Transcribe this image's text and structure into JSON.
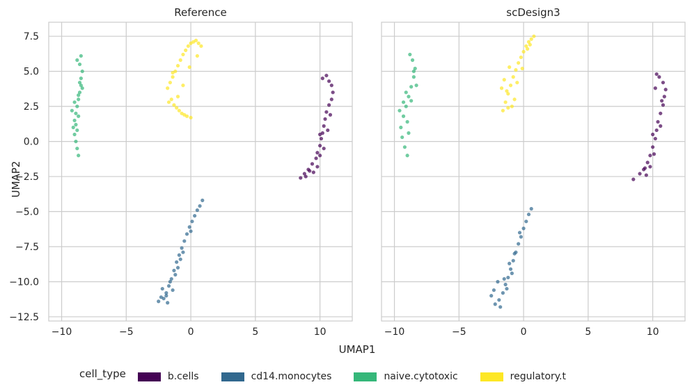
{
  "figure": {
    "xlabel": "UMAP1",
    "ylabel": "UMAP2",
    "legend_title": "cell_type"
  },
  "legend": [
    {
      "label": "b.cells",
      "color": "#440154"
    },
    {
      "label": "cd14.monocytes",
      "color": "#31688e"
    },
    {
      "label": "naive.cytotoxic",
      "color": "#35b779"
    },
    {
      "label": "regulatory.t",
      "color": "#fde725"
    }
  ],
  "chart_data": [
    {
      "type": "scatter",
      "title": "Reference",
      "xlabel": "",
      "ylabel": "UMAP2",
      "xlim": [
        -11.0,
        12.5
      ],
      "ylim": [
        -12.8,
        8.5
      ],
      "xticks": [
        -10,
        -5,
        0,
        5,
        10
      ],
      "yticks": [
        7.5,
        5.0,
        2.5,
        0.0,
        -2.5,
        -5.0,
        -7.5,
        -10.0,
        -12.5
      ],
      "xtick_labels": [
        "−10",
        "−5",
        "0",
        "5",
        "10"
      ],
      "ytick_labels": [
        "7.5",
        "5.0",
        "2.5",
        "0.0",
        "−2.5",
        "−5.0",
        "−7.5",
        "−10.0",
        "−12.5"
      ],
      "grid": true,
      "series": [
        {
          "name": "b.cells",
          "color": "#440154",
          "x": [
            8.5,
            8.8,
            9.1,
            9.4,
            9.7,
            9.8,
            10.0,
            10.1,
            10.2,
            10.3,
            10.4,
            10.5,
            10.7,
            10.9,
            11.0,
            10.9,
            10.7,
            10.5,
            10.2,
            10.0,
            9.8,
            9.5,
            9.2,
            8.9,
            10.3,
            10.6,
            10.8,
            10.0
          ],
          "y": [
            -2.6,
            -2.3,
            -2.0,
            -1.6,
            -1.2,
            -0.8,
            -0.3,
            0.2,
            0.6,
            1.1,
            1.6,
            2.1,
            2.6,
            3.0,
            3.5,
            4.0,
            4.3,
            4.7,
            4.5,
            0.5,
            -1.8,
            -2.2,
            -2.1,
            -2.5,
            -0.5,
            0.8,
            1.9,
            -1.0
          ]
        },
        {
          "name": "cd14.monocytes",
          "color": "#31688e",
          "x": [
            -2.5,
            -2.3,
            -2.1,
            -1.9,
            -1.7,
            -1.5,
            -1.3,
            -1.1,
            -0.9,
            -0.7,
            -0.5,
            -0.3,
            -0.1,
            0.1,
            0.3,
            0.5,
            0.7,
            0.9,
            -1.8,
            -1.4,
            -1.0,
            -0.6,
            -2.2,
            -1.6,
            -1.2,
            -0.8,
            0.0,
            -1.9
          ],
          "y": [
            -11.4,
            -11.1,
            -11.2,
            -10.8,
            -10.3,
            -9.8,
            -9.2,
            -8.6,
            -8.1,
            -7.6,
            -7.1,
            -6.6,
            -6.1,
            -5.7,
            -5.3,
            -4.9,
            -4.6,
            -4.2,
            -11.5,
            -10.6,
            -9.0,
            -7.9,
            -10.5,
            -10.0,
            -9.5,
            -8.4,
            -6.4,
            -11.0
          ]
        },
        {
          "name": "naive.cytotoxic",
          "color": "#35b779",
          "x": [
            -8.7,
            -8.8,
            -8.9,
            -9.0,
            -9.1,
            -9.0,
            -8.9,
            -8.8,
            -8.7,
            -8.6,
            -8.5,
            -8.5,
            -8.4,
            -8.6,
            -8.8,
            -9.2,
            -9.0,
            -8.7,
            -8.6,
            -8.9,
            -8.5,
            -8.7,
            -8.4,
            -8.8
          ],
          "y": [
            -1.0,
            -0.5,
            0.0,
            0.5,
            1.0,
            1.5,
            2.0,
            2.5,
            3.0,
            3.5,
            4.0,
            4.5,
            5.0,
            5.5,
            5.8,
            2.2,
            2.8,
            3.3,
            4.2,
            1.2,
            6.1,
            1.8,
            3.8,
            0.8
          ]
        },
        {
          "name": "regulatory.t",
          "color": "#fde725",
          "x": [
            -1.8,
            -1.6,
            -1.4,
            -1.2,
            -1.0,
            -0.8,
            -0.6,
            -0.4,
            -0.2,
            0.0,
            0.2,
            0.4,
            0.6,
            0.8,
            -1.7,
            -1.5,
            -1.3,
            -1.1,
            -0.9,
            -0.7,
            -0.5,
            -0.3,
            0.0,
            -1.4,
            -0.6,
            -0.1,
            0.5,
            -1.0
          ],
          "y": [
            3.8,
            4.2,
            4.6,
            5.0,
            5.4,
            5.8,
            6.2,
            6.5,
            6.8,
            7.0,
            7.1,
            7.2,
            7.0,
            6.8,
            2.8,
            3.0,
            2.6,
            2.4,
            2.2,
            2.0,
            1.9,
            1.8,
            1.7,
            4.9,
            4.0,
            5.3,
            6.1,
            3.2
          ]
        }
      ]
    },
    {
      "type": "scatter",
      "title": "scDesign3",
      "xlabel": "",
      "ylabel": "",
      "xlim": [
        -11.0,
        12.5
      ],
      "ylim": [
        -12.8,
        8.5
      ],
      "xticks": [
        -10,
        -5,
        0,
        5,
        10
      ],
      "yticks": [
        7.5,
        5.0,
        2.5,
        0.0,
        -2.5,
        -5.0,
        -7.5,
        -10.0,
        -12.5
      ],
      "xtick_labels": [
        "−10",
        "−5",
        "0",
        "5",
        "10"
      ],
      "grid": true,
      "series": [
        {
          "name": "b.cells",
          "color": "#440154",
          "x": [
            8.5,
            9.0,
            9.3,
            9.6,
            9.8,
            10.0,
            10.2,
            10.3,
            10.4,
            10.6,
            10.8,
            10.9,
            11.0,
            10.8,
            10.5,
            10.3,
            9.5,
            9.8,
            10.1,
            10.6,
            10.0,
            9.4,
            10.7,
            10.2
          ],
          "y": [
            -2.7,
            -2.3,
            -2.0,
            -1.5,
            -1.0,
            -0.4,
            0.2,
            0.8,
            1.4,
            2.0,
            2.6,
            3.2,
            3.7,
            4.2,
            4.6,
            4.8,
            -2.4,
            -1.8,
            -0.9,
            1.1,
            0.5,
            -1.9,
            2.9,
            3.8
          ]
        },
        {
          "name": "cd14.monocytes",
          "color": "#31688e",
          "x": [
            -2.5,
            -2.2,
            -1.9,
            -1.6,
            -1.4,
            -1.2,
            -1.0,
            -0.8,
            -0.6,
            -0.4,
            -0.2,
            0.0,
            0.2,
            0.4,
            0.6,
            -1.8,
            -1.3,
            -0.9,
            -2.0,
            -1.5,
            -1.1,
            -0.7,
            -0.3,
            -2.3
          ],
          "y": [
            -11.0,
            -11.6,
            -11.3,
            -10.8,
            -10.2,
            -9.7,
            -9.1,
            -8.5,
            -7.9,
            -7.3,
            -6.8,
            -6.2,
            -5.7,
            -5.2,
            -4.8,
            -11.8,
            -10.5,
            -9.4,
            -10.0,
            -9.8,
            -8.7,
            -8.0,
            -6.5,
            -10.6
          ]
        },
        {
          "name": "naive.cytotoxic",
          "color": "#35b779",
          "x": [
            -9.0,
            -9.2,
            -9.4,
            -9.5,
            -9.3,
            -9.1,
            -8.9,
            -8.7,
            -8.5,
            -8.4,
            -8.6,
            -8.8,
            -9.6,
            -9.0,
            -8.3,
            -8.7,
            -9.1,
            -8.5,
            -8.9,
            -9.3
          ],
          "y": [
            -1.0,
            -0.4,
            0.3,
            1.0,
            1.8,
            2.5,
            3.2,
            3.9,
            4.6,
            5.2,
            5.8,
            6.2,
            2.2,
            1.4,
            4.0,
            2.9,
            3.5,
            5.0,
            0.6,
            2.8
          ]
        },
        {
          "name": "regulatory.t",
          "color": "#fde725",
          "x": [
            -1.6,
            -1.4,
            -1.2,
            -1.0,
            -0.8,
            -0.6,
            -0.4,
            -0.2,
            0.0,
            0.2,
            0.4,
            0.6,
            0.8,
            -1.5,
            -1.3,
            -1.1,
            -0.9,
            -0.5,
            -0.1,
            0.3,
            -1.7,
            -0.7,
            0.5,
            -1.2
          ],
          "y": [
            2.2,
            2.8,
            3.4,
            4.0,
            4.6,
            5.1,
            5.6,
            6.0,
            6.4,
            6.8,
            7.1,
            7.3,
            7.5,
            4.4,
            3.6,
            5.3,
            2.5,
            4.2,
            5.2,
            6.6,
            3.8,
            3.0,
            6.9,
            2.4
          ]
        }
      ]
    }
  ]
}
